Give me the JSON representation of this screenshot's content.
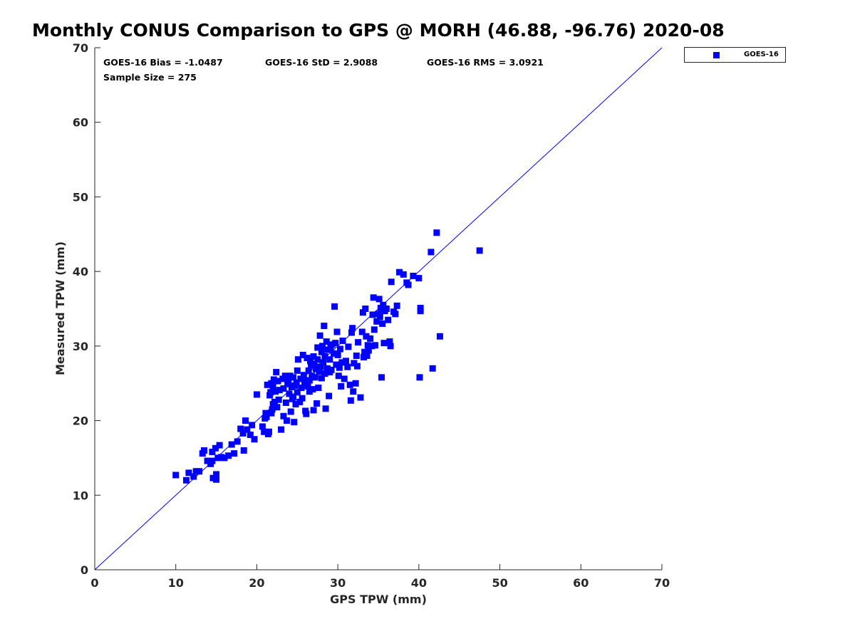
{
  "chart_data": {
    "type": "scatter",
    "title": "Monthly CONUS Comparison to GPS @ MORH (46.88, -96.76) 2020-08",
    "xlabel": "GPS TPW (mm)",
    "ylabel": "Measured TPW (mm)",
    "xlim": [
      0,
      70
    ],
    "ylim": [
      0,
      70
    ],
    "xticks": [
      "0",
      "10",
      "20",
      "30",
      "40",
      "50",
      "60",
      "70"
    ],
    "yticks": [
      "0",
      "10",
      "20",
      "30",
      "40",
      "50",
      "60",
      "70"
    ],
    "grid": false,
    "legend_position": "outside-top-right",
    "reference_line": "1:1 line",
    "colors": {
      "series": "#0000ff",
      "axes": "#262626"
    },
    "annotations": {
      "bias": "GOES-16 Bias = -1.0487",
      "std": "GOES-16 StD = 2.9088",
      "rms": "GOES-16 RMS = 3.0921",
      "sample_size": "Sample Size = 275"
    },
    "series": [
      {
        "name": "GOES-16",
        "marker": "square",
        "points": [
          [
            10.0,
            12.7
          ],
          [
            11.3,
            12.0
          ],
          [
            11.6,
            13.0
          ],
          [
            12.2,
            12.5
          ],
          [
            12.5,
            13.2
          ],
          [
            12.9,
            13.2
          ],
          [
            13.3,
            15.6
          ],
          [
            13.5,
            16.0
          ],
          [
            13.9,
            14.6
          ],
          [
            14.3,
            14.2
          ],
          [
            14.5,
            14.6
          ],
          [
            14.5,
            15.8
          ],
          [
            14.6,
            12.3
          ],
          [
            14.9,
            16.3
          ],
          [
            15.0,
            12.1
          ],
          [
            15.0,
            12.8
          ],
          [
            15.2,
            15.0
          ],
          [
            15.4,
            16.7
          ],
          [
            15.6,
            15.1
          ],
          [
            16.0,
            15.0
          ],
          [
            16.5,
            15.3
          ],
          [
            16.9,
            16.8
          ],
          [
            17.2,
            15.6
          ],
          [
            17.6,
            17.2
          ],
          [
            18.0,
            18.9
          ],
          [
            18.3,
            18.3
          ],
          [
            18.4,
            16.0
          ],
          [
            18.6,
            20.0
          ],
          [
            18.8,
            18.8
          ],
          [
            19.2,
            18.1
          ],
          [
            19.4,
            19.4
          ],
          [
            19.7,
            17.5
          ],
          [
            20.0,
            23.5
          ],
          [
            20.7,
            19.2
          ],
          [
            20.9,
            18.5
          ],
          [
            21.0,
            20.3
          ],
          [
            21.1,
            21.0
          ],
          [
            21.2,
            20.5
          ],
          [
            21.3,
            24.8
          ],
          [
            21.4,
            18.2
          ],
          [
            21.5,
            18.5
          ],
          [
            21.6,
            23.4
          ],
          [
            21.7,
            23.8
          ],
          [
            21.8,
            25.0
          ],
          [
            21.8,
            21.0
          ],
          [
            21.9,
            21.5
          ],
          [
            22.0,
            22.2
          ],
          [
            22.0,
            24.5
          ],
          [
            22.1,
            25.5
          ],
          [
            22.2,
            22.5
          ],
          [
            22.3,
            23.9
          ],
          [
            22.4,
            26.5
          ],
          [
            22.5,
            21.8
          ],
          [
            22.6,
            25.3
          ],
          [
            22.7,
            22.8
          ],
          [
            22.8,
            24.1
          ],
          [
            23.0,
            18.8
          ],
          [
            23.2,
            25.6
          ],
          [
            23.3,
            20.6
          ],
          [
            23.3,
            24.3
          ],
          [
            23.5,
            26.0
          ],
          [
            23.6,
            22.4
          ],
          [
            23.7,
            20.0
          ],
          [
            23.8,
            24.9
          ],
          [
            23.9,
            25.2
          ],
          [
            24.0,
            23.6
          ],
          [
            24.1,
            26.0
          ],
          [
            24.2,
            21.2
          ],
          [
            24.3,
            24.5
          ],
          [
            24.4,
            22.9
          ],
          [
            24.5,
            25.8
          ],
          [
            24.5,
            23.2
          ],
          [
            24.6,
            19.8
          ],
          [
            24.7,
            24.7
          ],
          [
            24.8,
            22.2
          ],
          [
            24.9,
            25.1
          ],
          [
            25.0,
            26.7
          ],
          [
            25.0,
            23.8
          ],
          [
            25.1,
            28.2
          ],
          [
            25.3,
            22.5
          ],
          [
            25.4,
            25.6
          ],
          [
            25.5,
            24.4
          ],
          [
            25.6,
            23.0
          ],
          [
            25.7,
            28.8
          ],
          [
            25.8,
            26.1
          ],
          [
            25.9,
            24.8
          ],
          [
            26.0,
            21.3
          ],
          [
            26.0,
            25.3
          ],
          [
            26.1,
            20.9
          ],
          [
            26.2,
            28.4
          ],
          [
            26.3,
            24.6
          ],
          [
            26.4,
            26.7
          ],
          [
            26.5,
            25.4
          ],
          [
            26.5,
            23.9
          ],
          [
            26.6,
            28.0
          ],
          [
            26.7,
            27.4
          ],
          [
            26.8,
            26.0
          ],
          [
            26.9,
            24.2
          ],
          [
            27.0,
            28.6
          ],
          [
            27.0,
            21.4
          ],
          [
            27.1,
            27.6
          ],
          [
            27.2,
            25.8
          ],
          [
            27.3,
            26.9
          ],
          [
            27.4,
            22.3
          ],
          [
            27.5,
            29.8
          ],
          [
            27.5,
            28.2
          ],
          [
            27.6,
            24.4
          ],
          [
            27.7,
            26.6
          ],
          [
            27.8,
            31.4
          ],
          [
            27.9,
            27.2
          ],
          [
            28.0,
            29.2
          ],
          [
            28.0,
            25.7
          ],
          [
            28.1,
            30.0
          ],
          [
            28.2,
            27.8
          ],
          [
            28.3,
            32.7
          ],
          [
            28.4,
            28.6
          ],
          [
            28.4,
            26.3
          ],
          [
            28.5,
            21.6
          ],
          [
            28.6,
            30.6
          ],
          [
            28.7,
            27.0
          ],
          [
            28.8,
            29.5
          ],
          [
            28.9,
            23.3
          ],
          [
            29.0,
            26.5
          ],
          [
            29.0,
            28.2
          ],
          [
            29.1,
            29.8
          ],
          [
            29.2,
            26.8
          ],
          [
            29.3,
            30.2
          ],
          [
            29.5,
            29.0
          ],
          [
            29.6,
            35.3
          ],
          [
            29.7,
            30.4
          ],
          [
            29.8,
            27.5
          ],
          [
            29.9,
            31.9
          ],
          [
            30.0,
            28.8
          ],
          [
            30.1,
            26.0
          ],
          [
            30.2,
            27.1
          ],
          [
            30.3,
            29.6
          ],
          [
            30.4,
            24.6
          ],
          [
            30.5,
            27.8
          ],
          [
            30.6,
            30.7
          ],
          [
            30.8,
            25.6
          ],
          [
            31.0,
            28.0
          ],
          [
            31.2,
            27.2
          ],
          [
            31.3,
            29.9
          ],
          [
            31.5,
            24.8
          ],
          [
            31.6,
            22.7
          ],
          [
            31.7,
            31.8
          ],
          [
            31.8,
            32.4
          ],
          [
            31.9,
            23.9
          ],
          [
            32.0,
            27.7
          ],
          [
            32.2,
            25.0
          ],
          [
            32.3,
            28.7
          ],
          [
            32.4,
            27.3
          ],
          [
            32.5,
            30.5
          ],
          [
            32.8,
            23.1
          ],
          [
            33.0,
            31.9
          ],
          [
            33.1,
            34.5
          ],
          [
            33.2,
            28.5
          ],
          [
            33.3,
            29.2
          ],
          [
            33.4,
            35.0
          ],
          [
            33.5,
            31.3
          ],
          [
            33.6,
            28.7
          ],
          [
            33.7,
            30.1
          ],
          [
            33.8,
            29.4
          ],
          [
            34.0,
            31.0
          ],
          [
            34.2,
            30.0
          ],
          [
            34.3,
            34.2
          ],
          [
            34.4,
            36.5
          ],
          [
            34.5,
            32.2
          ],
          [
            34.6,
            30.1
          ],
          [
            34.8,
            33.3
          ],
          [
            35.0,
            34.3
          ],
          [
            35.1,
            36.3
          ],
          [
            35.2,
            33.9
          ],
          [
            35.3,
            35.1
          ],
          [
            35.4,
            25.8
          ],
          [
            35.5,
            33.0
          ],
          [
            35.6,
            35.5
          ],
          [
            35.7,
            30.4
          ],
          [
            35.8,
            34.7
          ],
          [
            36.0,
            35.0
          ],
          [
            36.2,
            33.5
          ],
          [
            36.4,
            30.6
          ],
          [
            36.6,
            38.6
          ],
          [
            36.5,
            30.0
          ],
          [
            36.9,
            34.6
          ],
          [
            37.1,
            34.3
          ],
          [
            37.3,
            35.4
          ],
          [
            37.6,
            39.9
          ],
          [
            38.1,
            39.6
          ],
          [
            38.5,
            38.5
          ],
          [
            38.7,
            38.2
          ],
          [
            39.3,
            39.4
          ],
          [
            40.0,
            39.1
          ],
          [
            40.1,
            25.8
          ],
          [
            40.2,
            35.1
          ],
          [
            40.2,
            34.7
          ],
          [
            41.5,
            42.6
          ],
          [
            41.7,
            27.0
          ],
          [
            42.2,
            45.2
          ],
          [
            42.6,
            31.3
          ],
          [
            47.5,
            42.8
          ]
        ]
      }
    ]
  }
}
